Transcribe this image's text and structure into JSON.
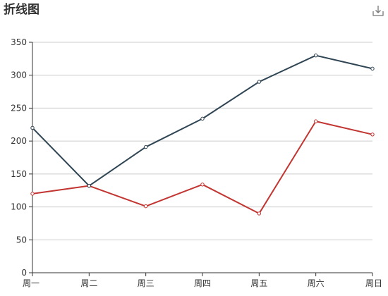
{
  "title": "折线图",
  "toolbox": {
    "download_icon": "download-icon"
  },
  "colors": {
    "axis": "#333333",
    "grid": "#cccccc",
    "series_1": "#2f4554",
    "series_2": "#c23531"
  },
  "chart_data": {
    "type": "line",
    "title": "折线图",
    "categories": [
      "周一",
      "周二",
      "周三",
      "周四",
      "周五",
      "周六",
      "周日"
    ],
    "series": [
      {
        "values": [
          220,
          132,
          191,
          234,
          290,
          330,
          310
        ]
      },
      {
        "values": [
          120,
          132,
          101,
          134,
          90,
          230,
          210
        ]
      }
    ],
    "ylim": [
      0,
      350
    ],
    "yticks": [
      0,
      50,
      100,
      150,
      200,
      250,
      300,
      350
    ],
    "grid": true,
    "legend": "none"
  }
}
